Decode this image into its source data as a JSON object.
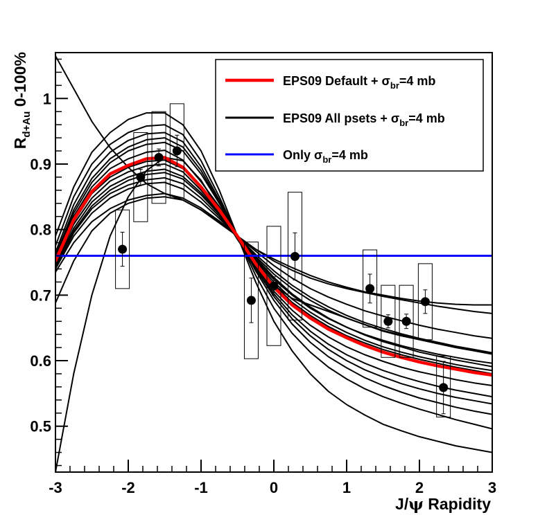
{
  "chart_data": {
    "type": "line",
    "xlabel": "J/ψ Rapidity",
    "xlabel_parts": {
      "pre": "J/",
      "psi": "ψ",
      "post": " Rapidity"
    },
    "ylabel": "R_{d+Au} 0-100%",
    "ylabel_parts": {
      "main": "R",
      "sub": "d+Au",
      "suffix": " 0-100%"
    },
    "xlim": [
      -3,
      3
    ],
    "ylim": [
      0.43,
      1.07
    ],
    "x_ticks": [
      -3,
      -2,
      -1,
      0,
      1,
      2,
      3
    ],
    "x_tick_labels": [
      "-3",
      "-2",
      "-1",
      "0",
      "1",
      "2",
      "3"
    ],
    "y_ticks": [
      0.5,
      0.6,
      0.7,
      0.8,
      0.9,
      1.0
    ],
    "y_tick_labels": [
      "0.5",
      "0.6",
      "0.7",
      "0.8",
      "0.9",
      "1"
    ],
    "legend_placement": "top-right",
    "legend": [
      {
        "pre": "EPS09 Default + σ",
        "sub": "br",
        "post": "=4 mb",
        "color": "#ff0000"
      },
      {
        "pre": "EPS09 All psets + σ",
        "sub": "br",
        "post": "=4 mb",
        "color": "#000000"
      },
      {
        "pre": "Only σ",
        "sub": "br",
        "post": "=4 mb",
        "color": "#0000ff"
      }
    ],
    "series": [
      {
        "name": "EPS09 Default + σbr=4 mb",
        "color": "#ff0000",
        "x": [
          -3,
          -2.75,
          -2.5,
          -2.25,
          -2,
          -1.75,
          -1.5,
          -1.25,
          -1,
          -0.75,
          -0.5,
          -0.25,
          0,
          0.25,
          0.5,
          0.75,
          1,
          1.25,
          1.5,
          1.75,
          2,
          2.25,
          2.5,
          2.75,
          3
        ],
        "y": [
          0.752,
          0.815,
          0.858,
          0.885,
          0.898,
          0.908,
          0.91,
          0.895,
          0.865,
          0.83,
          0.79,
          0.748,
          0.712,
          0.685,
          0.665,
          0.648,
          0.635,
          0.623,
          0.613,
          0.605,
          0.598,
          0.592,
          0.587,
          0.582,
          0.578
        ]
      },
      {
        "name": "Only σbr=4 mb",
        "color": "#0000ff",
        "x": [
          -3,
          3
        ],
        "y": [
          0.76,
          0.76
        ]
      }
    ],
    "pset_curves": [
      {
        "x": [
          -3,
          -2.75,
          -2.5,
          -2.25,
          -2,
          -1.75,
          -1.5,
          -1.25,
          -1,
          -0.75,
          -0.5,
          -0.25,
          0,
          0.25,
          0.5,
          0.75,
          1,
          1.25,
          1.5,
          1.75,
          2,
          2.25,
          2.5,
          2.75,
          3
        ],
        "y": [
          0.43,
          0.58,
          0.7,
          0.79,
          0.85,
          0.89,
          0.91,
          0.905,
          0.875,
          0.83,
          0.785,
          0.745,
          0.715,
          0.695,
          0.685,
          0.675,
          0.665,
          0.655,
          0.645,
          0.638,
          0.632,
          0.626,
          0.62,
          0.615,
          0.61
        ]
      },
      {
        "x": [
          -3,
          -2.75,
          -2.5,
          -2.25,
          -2,
          -1.75,
          -1.5,
          -1.25,
          -1,
          -0.75,
          -0.5,
          -0.25,
          0,
          0.25,
          0.5,
          0.75,
          1,
          1.25,
          1.5,
          1.75,
          2,
          2.25,
          2.5,
          2.75,
          3
        ],
        "y": [
          1.065,
          1.015,
          0.965,
          0.925,
          0.895,
          0.87,
          0.855,
          0.845,
          0.83,
          0.81,
          0.79,
          0.77,
          0.755,
          0.742,
          0.73,
          0.72,
          0.712,
          0.705,
          0.7,
          0.695,
          0.691,
          0.688,
          0.686,
          0.685,
          0.685
        ]
      },
      {
        "x": [
          -3,
          -2.75,
          -2.5,
          -2.25,
          -2,
          -1.75,
          -1.5,
          -1.25,
          -1,
          -0.75,
          -0.5,
          -0.25,
          0,
          0.25,
          0.5,
          0.75,
          1,
          1.25,
          1.5,
          1.75,
          2,
          2.25,
          2.5,
          2.75,
          3
        ],
        "y": [
          0.79,
          0.865,
          0.918,
          0.948,
          0.968,
          0.978,
          0.978,
          0.96,
          0.92,
          0.86,
          0.79,
          0.72,
          0.66,
          0.615,
          0.58,
          0.553,
          0.533,
          0.517,
          0.503,
          0.493,
          0.484,
          0.477,
          0.47,
          0.465,
          0.46
        ]
      },
      {
        "x": [
          -3,
          -2.75,
          -2.5,
          -2.25,
          -2,
          -1.75,
          -1.5,
          -1.25,
          -1,
          -0.75,
          -0.5,
          -0.25,
          0,
          0.25,
          0.5,
          0.75,
          1,
          1.25,
          1.5,
          1.75,
          2,
          2.25,
          2.5,
          2.75,
          3
        ],
        "y": [
          0.688,
          0.752,
          0.798,
          0.825,
          0.84,
          0.848,
          0.85,
          0.845,
          0.83,
          0.812,
          0.79,
          0.77,
          0.752,
          0.738,
          0.726,
          0.717,
          0.71,
          0.704,
          0.698,
          0.693,
          0.688,
          0.683,
          0.679,
          0.675,
          0.672
        ]
      },
      {
        "x": [
          -3,
          -2.75,
          -2.5,
          -2.25,
          -2,
          -1.75,
          -1.5,
          -1.25,
          -1,
          -0.75,
          -0.5,
          -0.25,
          0,
          0.25,
          0.5,
          0.75,
          1,
          1.25,
          1.5,
          1.75,
          2,
          2.25,
          2.5,
          2.75,
          3
        ],
        "y": [
          0.775,
          0.85,
          0.9,
          0.93,
          0.948,
          0.958,
          0.96,
          0.945,
          0.905,
          0.85,
          0.79,
          0.73,
          0.68,
          0.642,
          0.613,
          0.59,
          0.572,
          0.557,
          0.545,
          0.535,
          0.526,
          0.518,
          0.51,
          0.503,
          0.496
        ]
      },
      {
        "x": [
          -3,
          -2.75,
          -2.5,
          -2.25,
          -2,
          -1.75,
          -1.5,
          -1.25,
          -1,
          -0.75,
          -0.5,
          -0.25,
          0,
          0.25,
          0.5,
          0.75,
          1,
          1.25,
          1.5,
          1.75,
          2,
          2.25,
          2.5,
          2.75,
          3
        ],
        "y": [
          0.74,
          0.79,
          0.825,
          0.848,
          0.862,
          0.87,
          0.872,
          0.862,
          0.842,
          0.817,
          0.79,
          0.762,
          0.737,
          0.715,
          0.697,
          0.682,
          0.669,
          0.658,
          0.649,
          0.641,
          0.634,
          0.628,
          0.622,
          0.617,
          0.612
        ]
      },
      {
        "x": [
          -3,
          -2.75,
          -2.5,
          -2.25,
          -2,
          -1.75,
          -1.5,
          -1.25,
          -1,
          -0.75,
          -0.5,
          -0.25,
          0,
          0.25,
          0.5,
          0.75,
          1,
          1.25,
          1.5,
          1.75,
          2,
          2.25,
          2.5,
          2.75,
          3
        ],
        "y": [
          0.735,
          0.78,
          0.812,
          0.832,
          0.845,
          0.852,
          0.855,
          0.848,
          0.833,
          0.813,
          0.79,
          0.767,
          0.745,
          0.726,
          0.71,
          0.697,
          0.686,
          0.676,
          0.668,
          0.661,
          0.654,
          0.648,
          0.643,
          0.638,
          0.634
        ]
      },
      {
        "x": [
          -3,
          -2.75,
          -2.5,
          -2.25,
          -2,
          -1.75,
          -1.5,
          -1.25,
          -1,
          -0.75,
          -0.5,
          -0.25,
          0,
          0.25,
          0.5,
          0.75,
          1,
          1.25,
          1.5,
          1.75,
          2,
          2.25,
          2.5,
          2.75,
          3
        ],
        "y": [
          0.745,
          0.798,
          0.836,
          0.86,
          0.875,
          0.884,
          0.887,
          0.877,
          0.853,
          0.823,
          0.79,
          0.757,
          0.727,
          0.702,
          0.682,
          0.665,
          0.651,
          0.639,
          0.629,
          0.621,
          0.613,
          0.607,
          0.601,
          0.596,
          0.591
        ]
      },
      {
        "x": [
          -3,
          -2.75,
          -2.5,
          -2.25,
          -2,
          -1.75,
          -1.5,
          -1.25,
          -1,
          -0.75,
          -0.5,
          -0.25,
          0,
          0.25,
          0.5,
          0.75,
          1,
          1.25,
          1.5,
          1.75,
          2,
          2.25,
          2.5,
          2.75,
          3
        ],
        "y": [
          0.758,
          0.825,
          0.872,
          0.902,
          0.92,
          0.93,
          0.933,
          0.92,
          0.885,
          0.84,
          0.79,
          0.742,
          0.702,
          0.67,
          0.645,
          0.625,
          0.609,
          0.596,
          0.585,
          0.576,
          0.568,
          0.561,
          0.555,
          0.55,
          0.545
        ]
      },
      {
        "x": [
          -3,
          -2.75,
          -2.5,
          -2.25,
          -2,
          -1.75,
          -1.5,
          -1.25,
          -1,
          -0.75,
          -0.5,
          -0.25,
          0,
          0.25,
          0.5,
          0.75,
          1,
          1.25,
          1.5,
          1.75,
          2,
          2.25,
          2.5,
          2.75,
          3
        ],
        "y": [
          0.765,
          0.838,
          0.888,
          0.918,
          0.936,
          0.946,
          0.948,
          0.934,
          0.896,
          0.845,
          0.79,
          0.737,
          0.692,
          0.656,
          0.628,
          0.606,
          0.589,
          0.574,
          0.562,
          0.552,
          0.543,
          0.536,
          0.529,
          0.523,
          0.518
        ]
      },
      {
        "x": [
          -3,
          -2.75,
          -2.5,
          -2.25,
          -2,
          -1.75,
          -1.5,
          -1.25,
          -1,
          -0.75,
          -0.5,
          -0.25,
          0,
          0.25,
          0.5,
          0.75,
          1,
          1.25,
          1.5,
          1.75,
          2,
          2.25,
          2.5,
          2.75,
          3
        ],
        "y": [
          0.75,
          0.808,
          0.848,
          0.874,
          0.888,
          0.897,
          0.9,
          0.888,
          0.86,
          0.827,
          0.79,
          0.752,
          0.72,
          0.694,
          0.674,
          0.657,
          0.643,
          0.631,
          0.621,
          0.613,
          0.606,
          0.6,
          0.594,
          0.589,
          0.585
        ]
      },
      {
        "x": [
          -3,
          -2.75,
          -2.5,
          -2.25,
          -2,
          -1.75,
          -1.5,
          -1.25,
          -1,
          -0.75,
          -0.5,
          -0.25,
          0,
          0.25,
          0.5,
          0.75,
          1,
          1.25,
          1.5,
          1.75,
          2,
          2.25,
          2.5,
          2.75,
          3
        ],
        "y": [
          0.755,
          0.82,
          0.865,
          0.893,
          0.908,
          0.918,
          0.921,
          0.906,
          0.873,
          0.835,
          0.79,
          0.745,
          0.706,
          0.677,
          0.654,
          0.636,
          0.621,
          0.609,
          0.599,
          0.59,
          0.583,
          0.577,
          0.571,
          0.566,
          0.562
        ]
      },
      {
        "x": [
          -3,
          -2.75,
          -2.5,
          -2.25,
          -2,
          -1.75,
          -1.5,
          -1.25,
          -1,
          -0.75,
          -0.5,
          -0.25,
          0,
          0.25,
          0.5,
          0.75,
          1,
          1.25,
          1.5,
          1.75,
          2,
          2.25,
          2.5,
          2.75,
          3
        ],
        "y": [
          0.748,
          0.802,
          0.842,
          0.866,
          0.88,
          0.889,
          0.892,
          0.881,
          0.856,
          0.825,
          0.79,
          0.754,
          0.724,
          0.7,
          0.68,
          0.664,
          0.651,
          0.64,
          0.631,
          0.623,
          0.616,
          0.61,
          0.605,
          0.6,
          0.596
        ]
      },
      {
        "x": [
          -3,
          -2.75,
          -2.5,
          -2.25,
          -2,
          -1.75,
          -1.5,
          -1.25,
          -1,
          -0.75,
          -0.5,
          -0.25,
          0,
          0.25,
          0.5,
          0.75,
          1,
          1.25,
          1.5,
          1.75,
          2,
          2.25,
          2.5,
          2.75,
          3
        ],
        "y": [
          0.76,
          0.83,
          0.878,
          0.908,
          0.926,
          0.937,
          0.94,
          0.926,
          0.89,
          0.842,
          0.79,
          0.74,
          0.698,
          0.664,
          0.638,
          0.617,
          0.6,
          0.586,
          0.575,
          0.565,
          0.557,
          0.55,
          0.544,
          0.539,
          0.534
        ]
      },
      {
        "x": [
          -3,
          -2.75,
          -2.5,
          -2.25,
          -2,
          -1.75,
          -1.5,
          -1.25,
          -1,
          -0.75,
          -0.5,
          -0.25,
          0,
          0.25,
          0.5,
          0.75,
          1,
          1.25,
          1.5,
          1.75,
          2,
          2.25,
          2.5,
          2.75,
          3
        ],
        "y": [
          0.742,
          0.795,
          0.832,
          0.855,
          0.868,
          0.876,
          0.879,
          0.87,
          0.848,
          0.82,
          0.79,
          0.759,
          0.732,
          0.71,
          0.692,
          0.677,
          0.665,
          0.655,
          0.646,
          0.639,
          0.632,
          0.626,
          0.621,
          0.616,
          0.612
        ]
      },
      {
        "x": [
          -3,
          -2.75,
          -2.5,
          -2.25,
          -2,
          -1.75,
          -1.5,
          -1.25,
          -1,
          -0.75,
          -0.5,
          -0.25,
          0,
          0.25,
          0.5,
          0.75,
          1,
          1.25,
          1.5,
          1.75,
          2,
          2.25,
          2.5,
          2.75,
          3
        ],
        "y": [
          0.752,
          0.812,
          0.855,
          0.88,
          0.895,
          0.904,
          0.906,
          0.893,
          0.866,
          0.831,
          0.79,
          0.749,
          0.716,
          0.689,
          0.669,
          0.652,
          0.638,
          0.627,
          0.617,
          0.609,
          0.602,
          0.596,
          0.59,
          0.585,
          0.58
        ]
      }
    ],
    "data_points": [
      {
        "x": -2.08,
        "y": 0.77,
        "stat_lo": 0.744,
        "stat_hi": 0.796,
        "sys_lo": 0.71,
        "sys_hi": 0.83
      },
      {
        "x": -1.83,
        "y": 0.88,
        "stat_lo": 0.868,
        "stat_hi": 0.892,
        "sys_lo": 0.812,
        "sys_hi": 0.948
      },
      {
        "x": -1.58,
        "y": 0.91,
        "stat_lo": 0.897,
        "stat_hi": 0.923,
        "sys_lo": 0.84,
        "sys_hi": 0.98
      },
      {
        "x": -1.33,
        "y": 0.92,
        "stat_lo": 0.896,
        "stat_hi": 0.944,
        "sys_lo": 0.848,
        "sys_hi": 0.992
      },
      {
        "x": -0.31,
        "y": 0.692,
        "stat_lo": 0.658,
        "stat_hi": 0.726,
        "sys_lo": 0.603,
        "sys_hi": 0.781
      },
      {
        "x": 0.0,
        "y": 0.714,
        "stat_lo": 0.7,
        "stat_hi": 0.728,
        "sys_lo": 0.623,
        "sys_hi": 0.805
      },
      {
        "x": 0.29,
        "y": 0.759,
        "stat_lo": 0.723,
        "stat_hi": 0.795,
        "sys_lo": 0.662,
        "sys_hi": 0.857
      },
      {
        "x": 1.32,
        "y": 0.71,
        "stat_lo": 0.688,
        "stat_hi": 0.732,
        "sys_lo": 0.651,
        "sys_hi": 0.769
      },
      {
        "x": 1.57,
        "y": 0.66,
        "stat_lo": 0.65,
        "stat_hi": 0.67,
        "sys_lo": 0.605,
        "sys_hi": 0.715
      },
      {
        "x": 1.82,
        "y": 0.66,
        "stat_lo": 0.649,
        "stat_hi": 0.671,
        "sys_lo": 0.605,
        "sys_hi": 0.715
      },
      {
        "x": 2.08,
        "y": 0.69,
        "stat_lo": 0.672,
        "stat_hi": 0.708,
        "sys_lo": 0.632,
        "sys_hi": 0.748
      },
      {
        "x": 2.33,
        "y": 0.559,
        "stat_lo": 0.519,
        "stat_hi": 0.599,
        "sys_lo": 0.514,
        "sys_hi": 0.607
      }
    ]
  }
}
